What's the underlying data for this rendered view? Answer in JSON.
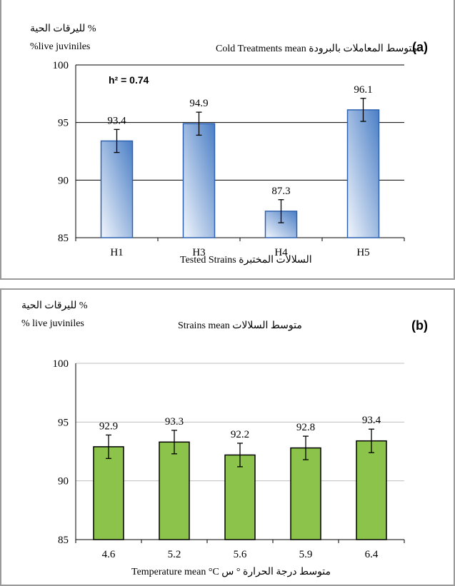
{
  "colors": {
    "bar_a_edge": "#2e62b0",
    "bar_a_fill_light": "#f2f6fc",
    "bar_a_fill_dark": "#4b7fc6",
    "bar_b_fill": "#8cc34a",
    "bar_b_edge": "#000000",
    "grid": "#000000",
    "grid_b": "#bfbfbf",
    "panel_border": "#9a9a9a"
  },
  "panel_a": {
    "ylabel_ar": "%  لليرقات الحية",
    "ylabel_en": "%live juviniles",
    "title": "Cold Treatments mean  متوسط المعاملات بالبرودة",
    "tag": "(a)",
    "h2": "h² = 0.74",
    "xlabel": "Tested Strains  السلالات المختبرة"
  },
  "panel_b": {
    "ylabel_ar": "% لليرقات الحية",
    "ylabel_en": "%  live juviniles",
    "title": "Strains mean  متوسط السلالات",
    "tag": "(b)",
    "xlabel": "Temperature mean °C  متوسط درجة الحرارة ° س"
  },
  "chart_data": [
    {
      "type": "bar",
      "categories": [
        "H1",
        "H3",
        "H4",
        "H5"
      ],
      "values": [
        93.4,
        94.9,
        87.3,
        96.1
      ],
      "labels": [
        "93.4",
        "94.9",
        "87.3",
        "96.1"
      ],
      "error": [
        1.0,
        1.0,
        1.0,
        1.0
      ],
      "ylim": [
        85,
        100
      ],
      "yticks": [
        "85",
        "90",
        "95",
        "100"
      ],
      "ytick_values": [
        85,
        90,
        95,
        100
      ],
      "grid": true,
      "xlabel": "Tested Strains  السلالات المختبرة",
      "ylabel": "%live juviniles"
    },
    {
      "type": "bar",
      "categories": [
        "4.6",
        "5.2",
        "5.6",
        "5.9",
        "6.4"
      ],
      "values": [
        92.9,
        93.3,
        92.2,
        92.8,
        93.4
      ],
      "labels": [
        "92.9",
        "93.3",
        "92.2",
        "92.8",
        "93.4"
      ],
      "error": [
        1.0,
        1.0,
        1.0,
        1.0,
        1.0
      ],
      "ylim": [
        85,
        100
      ],
      "yticks": [
        "85",
        "90",
        "95",
        "100"
      ],
      "ytick_values": [
        85,
        90,
        95,
        100
      ],
      "grid": true,
      "xlabel": "Temperature mean °C  متوسط درجة الحرارة ° س",
      "ylabel": "%  live juviniles"
    }
  ]
}
